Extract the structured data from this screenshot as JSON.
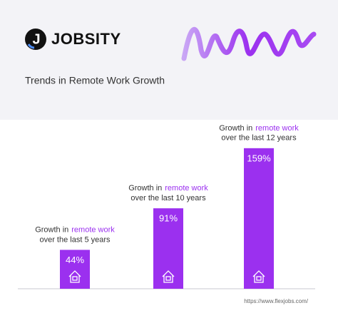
{
  "logo": {
    "mark": "J",
    "name": "JOBSITY"
  },
  "chart_data": {
    "type": "bar",
    "title": "Trends in Remote Work Growth",
    "categories": [
      {
        "before": "Growth in",
        "highlight": "remote work",
        "after": "over the last 5 years"
      },
      {
        "before": "Growth in",
        "highlight": "remote work",
        "after": "over the last 10 years"
      },
      {
        "before": "Growth in",
        "highlight": "remote work",
        "after": "over the last 12 years"
      }
    ],
    "values": [
      44,
      91,
      159
    ],
    "value_labels": [
      "44%",
      "91%",
      "159%"
    ],
    "color": "#9b30ef",
    "source": "https://www.flexjobs.com/"
  }
}
